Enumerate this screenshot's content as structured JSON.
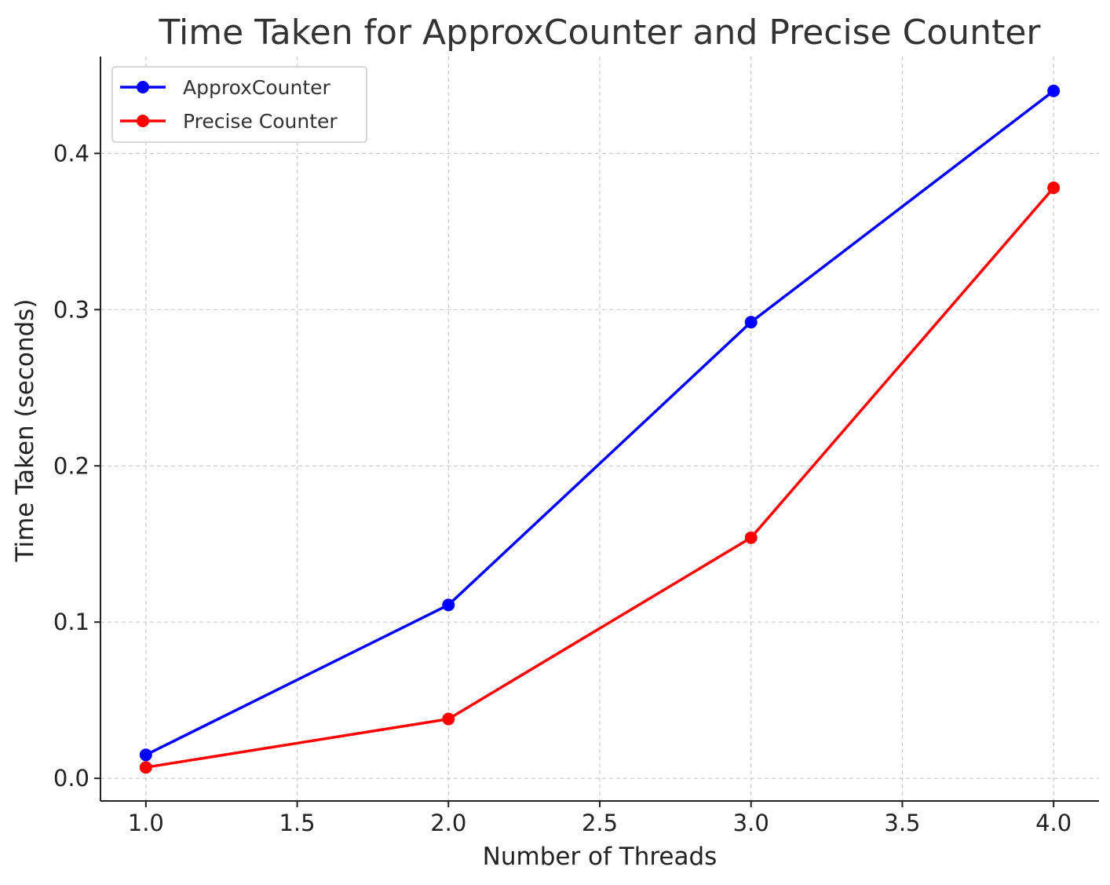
{
  "chart_data": {
    "type": "line",
    "title": "Time Taken for ApproxCounter and Precise Counter",
    "xlabel": "Number of Threads",
    "ylabel": "Time Taken (seconds)",
    "xlim": [
      0.85,
      4.15
    ],
    "ylim": [
      -0.0145,
      0.462
    ],
    "xticks": [
      1.0,
      1.5,
      2.0,
      2.5,
      3.0,
      3.5,
      4.0
    ],
    "xtick_labels": [
      "1.0",
      "1.5",
      "2.0",
      "2.5",
      "3.0",
      "3.5",
      "4.0"
    ],
    "yticks": [
      0.0,
      0.1,
      0.2,
      0.3,
      0.4
    ],
    "ytick_labels": [
      "0.0",
      "0.1",
      "0.2",
      "0.3",
      "0.4"
    ],
    "grid": true,
    "legend_position": "top-left",
    "x": [
      1,
      2,
      3,
      4
    ],
    "series": [
      {
        "name": "ApproxCounter",
        "color": "#0000ff",
        "marker": "circle",
        "values": [
          0.015,
          0.111,
          0.292,
          0.44
        ]
      },
      {
        "name": "Precise Counter",
        "color": "#ff0000",
        "marker": "circle",
        "values": [
          0.007,
          0.038,
          0.154,
          0.378
        ]
      }
    ]
  }
}
